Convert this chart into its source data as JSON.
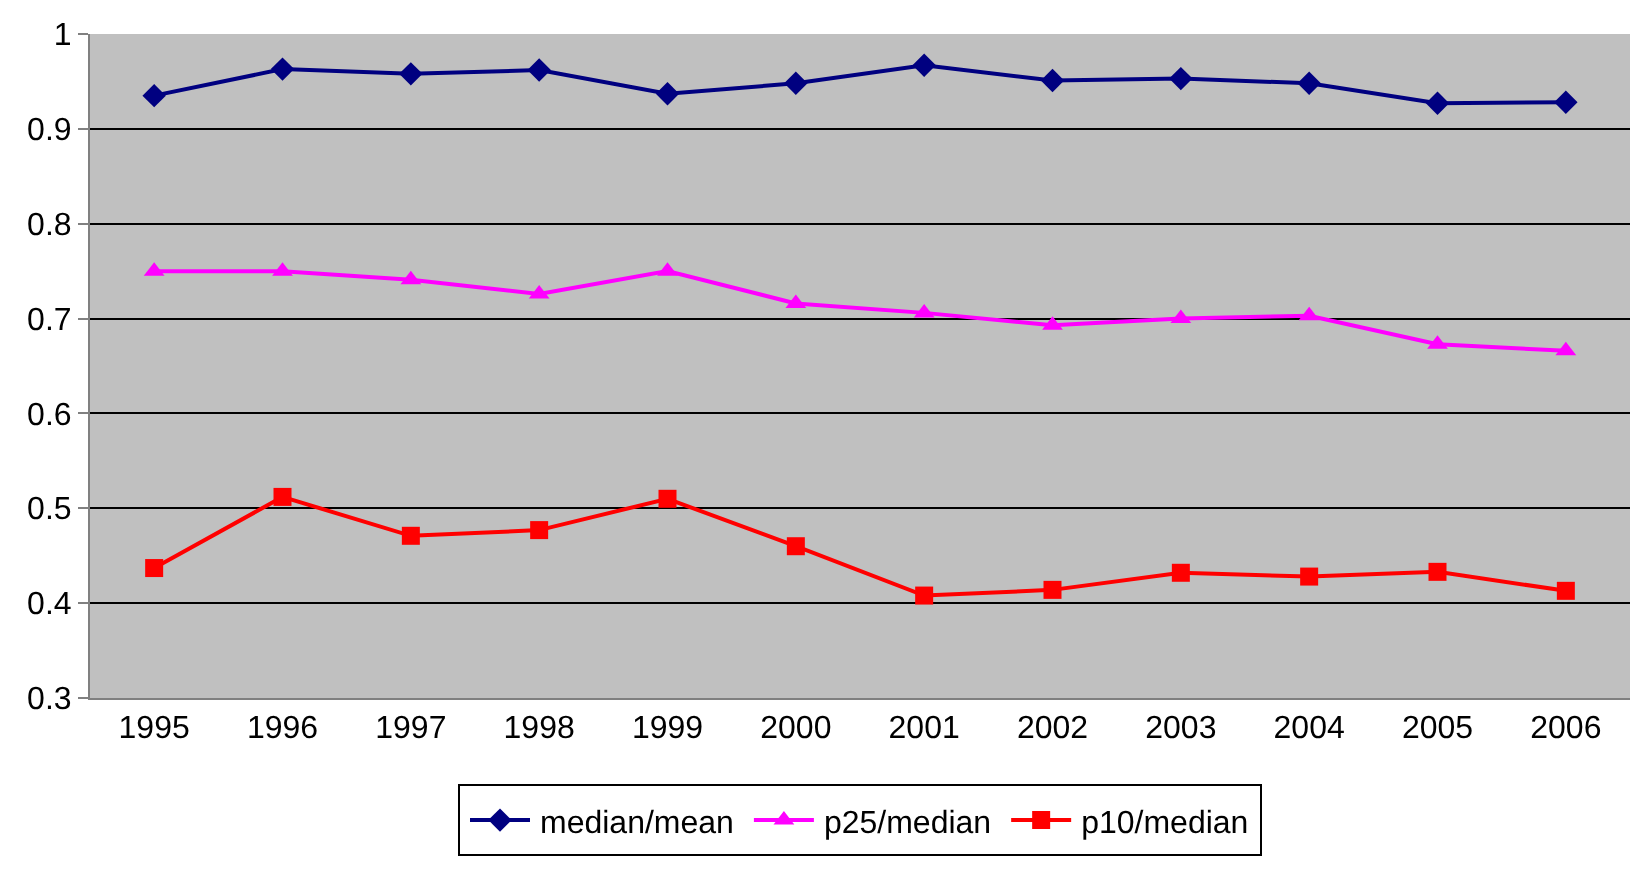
{
  "chart_data": {
    "type": "line",
    "categories": [
      "1995",
      "1996",
      "1997",
      "1998",
      "1999",
      "2000",
      "2001",
      "2002",
      "2003",
      "2004",
      "2005",
      "2006"
    ],
    "series": [
      {
        "name": "median/mean",
        "color": "#000080",
        "marker": "diamond",
        "values": [
          0.935,
          0.963,
          0.958,
          0.962,
          0.937,
          0.948,
          0.967,
          0.951,
          0.953,
          0.948,
          0.927,
          0.928
        ]
      },
      {
        "name": "p25/median",
        "color": "#ff00ff",
        "marker": "triangle",
        "values": [
          0.75,
          0.75,
          0.741,
          0.726,
          0.75,
          0.716,
          0.706,
          0.693,
          0.7,
          0.703,
          0.673,
          0.666
        ]
      },
      {
        "name": "p10/median",
        "color": "#ff0000",
        "marker": "square",
        "values": [
          0.437,
          0.512,
          0.471,
          0.477,
          0.51,
          0.46,
          0.408,
          0.414,
          0.432,
          0.428,
          0.433,
          0.413
        ]
      }
    ],
    "ylim": [
      0.3,
      1
    ],
    "yticks": [
      0.3,
      0.4,
      0.5,
      0.6,
      0.7,
      0.8,
      0.9,
      1
    ],
    "grid": "y",
    "legend": "bottom",
    "line_style": "solid"
  }
}
